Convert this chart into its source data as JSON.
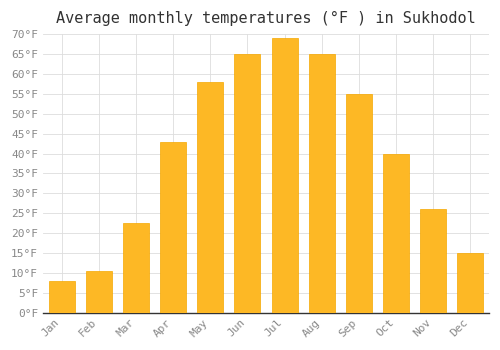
{
  "title": "Average monthly temperatures (°F ) in Sukhodol",
  "months": [
    "Jan",
    "Feb",
    "Mar",
    "Apr",
    "May",
    "Jun",
    "Jul",
    "Aug",
    "Sep",
    "Oct",
    "Nov",
    "Dec"
  ],
  "values": [
    8,
    10.5,
    22.5,
    43,
    58,
    65,
    69,
    65,
    55,
    40,
    26,
    15
  ],
  "bar_color": "#FDB825",
  "bar_edge_color": "#F5A800",
  "ylim": [
    0,
    70
  ],
  "yticks": [
    0,
    5,
    10,
    15,
    20,
    25,
    30,
    35,
    40,
    45,
    50,
    55,
    60,
    65,
    70
  ],
  "background_color": "#ffffff",
  "plot_bg_color": "#ffffff",
  "grid_color": "#dddddd",
  "title_fontsize": 11,
  "tick_fontsize": 8,
  "font_family": "monospace",
  "tick_color": "#888888",
  "title_color": "#333333"
}
